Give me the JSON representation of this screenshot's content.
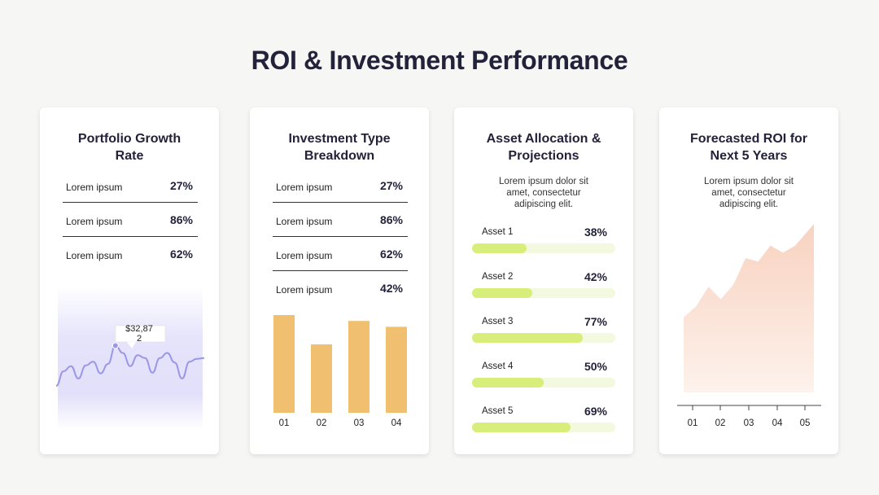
{
  "title": "ROI & Investment Performance",
  "cards": [
    {
      "title_line1": "Portfolio Growth",
      "title_line2": "Rate",
      "rows": [
        {
          "label": "Lorem ipsum",
          "value": "27%"
        },
        {
          "label": "Lorem ipsum",
          "value": "86%"
        },
        {
          "label": "Lorem ipsum",
          "value": "62%"
        }
      ],
      "tooltip_line1": "$32,87",
      "tooltip_line2": "2"
    },
    {
      "title_line1": "Investment Type",
      "title_line2": "Breakdown",
      "rows": [
        {
          "label": "Lorem ipsum",
          "value": "27%"
        },
        {
          "label": "Lorem ipsum",
          "value": "86%"
        },
        {
          "label": "Lorem ipsum",
          "value": "62%"
        },
        {
          "label": "Lorem ipsum",
          "value": "42%"
        }
      ]
    },
    {
      "title_line1": "Asset Allocation &",
      "title_line2": "Projections",
      "description": [
        "Lorem ipsum dolor sit",
        "amet, consectetur",
        "adipiscing elit."
      ],
      "assets": [
        {
          "label": "Asset 1",
          "value": "38%"
        },
        {
          "label": "Asset 2",
          "value": "42%"
        },
        {
          "label": "Asset 3",
          "value": "77%"
        },
        {
          "label": "Asset 4",
          "value": "50%"
        },
        {
          "label": "Asset 5",
          "value": "69%"
        }
      ]
    },
    {
      "title_line1": "Forecasted ROI for",
      "title_line2": "Next 5 Years",
      "description": [
        "Lorem ipsum dolor sit",
        "amet, consectetur",
        "adipiscing elit."
      ]
    }
  ],
  "colors": {
    "line": "#9a97e6",
    "line_area_top": "#e6e4fb",
    "bar": "#f0c070",
    "progress_fill": "#d7ef7a",
    "progress_track": "#f2f9df",
    "area_fill": "#f8d5c4"
  },
  "chart_data": [
    {
      "type": "line",
      "title": "",
      "x": [
        0,
        1,
        2,
        3,
        4,
        5,
        6,
        7,
        8,
        9,
        10,
        11,
        12,
        13,
        14,
        15,
        16,
        17,
        18,
        19,
        20
      ],
      "values": [
        20,
        40,
        47,
        30,
        48,
        53,
        37,
        50,
        75,
        65,
        47,
        62,
        58,
        38,
        58,
        65,
        52,
        30,
        53,
        57,
        58
      ],
      "annotation": "$32,872",
      "xlabel": "",
      "ylabel": "",
      "ylim": [
        0,
        100
      ],
      "grid": false
    },
    {
      "type": "bar",
      "categories": [
        "01",
        "02",
        "03",
        "04"
      ],
      "values": [
        100,
        70,
        94,
        88
      ],
      "xlabel": "",
      "ylabel": "",
      "ylim": [
        0,
        100
      ],
      "grid": false
    },
    {
      "type": "bar",
      "orientation": "horizontal",
      "categories": [
        "Asset 1",
        "Asset 2",
        "Asset 3",
        "Asset 4",
        "Asset 5"
      ],
      "values": [
        38,
        42,
        77,
        50,
        69
      ],
      "xlim": [
        0,
        100
      ]
    },
    {
      "type": "area",
      "categories": [
        "01",
        "02",
        "03",
        "04",
        "05"
      ],
      "x": [
        0,
        0.5,
        1,
        1.5,
        2,
        2.5,
        3,
        3.5,
        4,
        4.5,
        5,
        5.25
      ],
      "values": [
        42,
        48,
        59,
        52,
        60,
        75,
        73,
        82,
        78,
        82,
        90,
        94
      ],
      "xlabel": "",
      "ylabel": "",
      "ylim": [
        0,
        100
      ],
      "grid": false
    }
  ]
}
